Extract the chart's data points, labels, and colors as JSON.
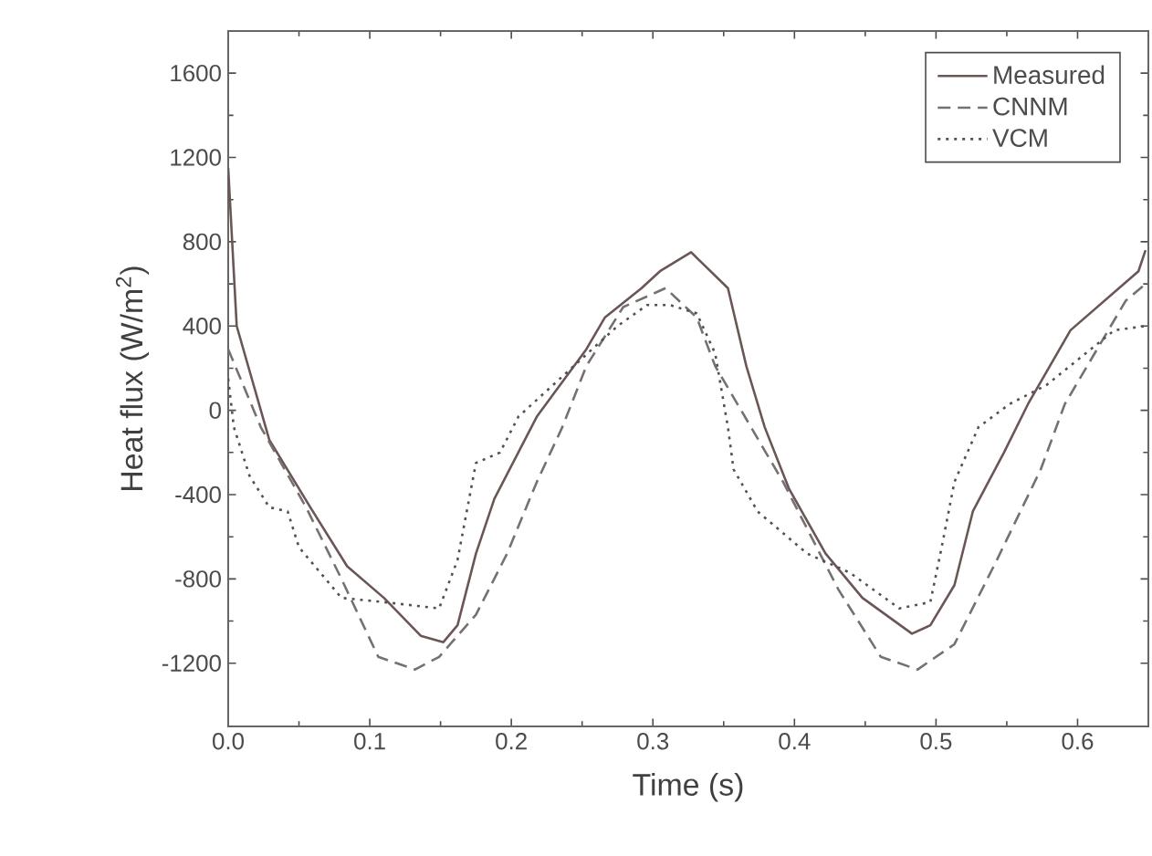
{
  "chart_data": {
    "type": "line",
    "xlabel": "Time (s)",
    "ylabel": "Heat flux (W/m$^{2}$)",
    "xlim": [
      0,
      0.65
    ],
    "ylim": [
      -1500,
      1800
    ],
    "xticks": [
      {
        "value": 0,
        "label": "0.0"
      },
      0.1,
      0.2,
      0.3,
      0.4,
      0.5,
      0.6
    ],
    "yticks": [
      -1200,
      -800,
      -400,
      0,
      400,
      800,
      1200,
      1600
    ],
    "grid": false,
    "legend": "top right",
    "marker": "none",
    "series": [
      {
        "name": "Measured",
        "color": "#6b5656",
        "line_style": "solid",
        "x": [
          0,
          0.006,
          0.029,
          0.058,
          0.084,
          0.11,
          0.136,
          0.152,
          0.162,
          0.175,
          0.188,
          0.218,
          0.253,
          0.266,
          0.292,
          0.305,
          0.327,
          0.353,
          0.366,
          0.379,
          0.396,
          0.422,
          0.448,
          0.483,
          0.496,
          0.513,
          0.526,
          0.548,
          0.565,
          0.595,
          0.643,
          0.648
        ],
        "values": [
          1150,
          400,
          -140,
          -460,
          -740,
          -890,
          -1070,
          -1100,
          -1020,
          -680,
          -420,
          -30,
          290,
          440,
          580,
          660,
          750,
          580,
          210,
          -80,
          -370,
          -680,
          -890,
          -1060,
          -1020,
          -830,
          -480,
          -200,
          30,
          380,
          660,
          760
        ]
      },
      {
        "name": "CNNM",
        "color": "#777070",
        "line_style": "dashed",
        "x": [
          0,
          0.023,
          0.055,
          0.08,
          0.106,
          0.132,
          0.149,
          0.175,
          0.197,
          0.218,
          0.236,
          0.253,
          0.279,
          0.309,
          0.331,
          0.344,
          0.392,
          0.431,
          0.461,
          0.487,
          0.513,
          0.543,
          0.574,
          0.591,
          0.634,
          0.648
        ],
        "values": [
          290,
          -80,
          -460,
          -800,
          -1170,
          -1230,
          -1170,
          -970,
          -680,
          -340,
          -80,
          210,
          490,
          580,
          440,
          210,
          -340,
          -850,
          -1170,
          -1230,
          -1110,
          -710,
          -280,
          30,
          520,
          600
        ]
      },
      {
        "name": "VCM",
        "color": "#555050",
        "line_style": "dotted",
        "x": [
          0,
          0.004,
          0.015,
          0.029,
          0.042,
          0.05,
          0.08,
          0.11,
          0.149,
          0.162,
          0.175,
          0.192,
          0.205,
          0.275,
          0.296,
          0.312,
          0.331,
          0.344,
          0.353,
          0.357,
          0.374,
          0.409,
          0.439,
          0.474,
          0.496,
          0.504,
          0.513,
          0.53,
          0.552,
          0.578,
          0.626,
          0.648
        ],
        "values": [
          150,
          -80,
          -310,
          -460,
          -480,
          -650,
          -890,
          -910,
          -940,
          -710,
          -250,
          -200,
          -30,
          400,
          500,
          500,
          460,
          270,
          -80,
          -280,
          -480,
          -680,
          -770,
          -940,
          -910,
          -650,
          -340,
          -80,
          30,
          120,
          380,
          400
        ]
      }
    ]
  }
}
